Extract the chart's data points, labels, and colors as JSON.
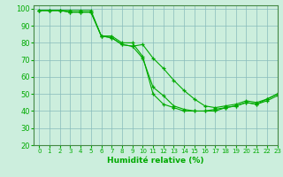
{
  "title": "",
  "xlabel": "Humidité relative (%)",
  "ylabel": "",
  "bg_color": "#cceedd",
  "grid_color": "#88bbbb",
  "line_color": "#00aa00",
  "marker": "+",
  "xlim": [
    -0.5,
    23
  ],
  "ylim": [
    20,
    102
  ],
  "xticks": [
    0,
    1,
    2,
    3,
    4,
    5,
    6,
    7,
    8,
    9,
    10,
    11,
    12,
    13,
    14,
    15,
    16,
    17,
    18,
    19,
    20,
    21,
    22,
    23
  ],
  "yticks": [
    20,
    30,
    40,
    50,
    60,
    70,
    80,
    90,
    100
  ],
  "series": [
    [
      99,
      99,
      99,
      98,
      98,
      98,
      84,
      83,
      79,
      78,
      71,
      54,
      49,
      43,
      41,
      40,
      40,
      41,
      42,
      43,
      45,
      44,
      46,
      49
    ],
    [
      99,
      99,
      99,
      98,
      98,
      98,
      84,
      83,
      79,
      78,
      79,
      71,
      65,
      58,
      52,
      47,
      43,
      42,
      43,
      44,
      46,
      45,
      47,
      50
    ],
    [
      99,
      99,
      99,
      99,
      99,
      99,
      84,
      84,
      80,
      80,
      72,
      50,
      44,
      42,
      40,
      40,
      40,
      40,
      42,
      43,
      45,
      44,
      47,
      50
    ]
  ]
}
